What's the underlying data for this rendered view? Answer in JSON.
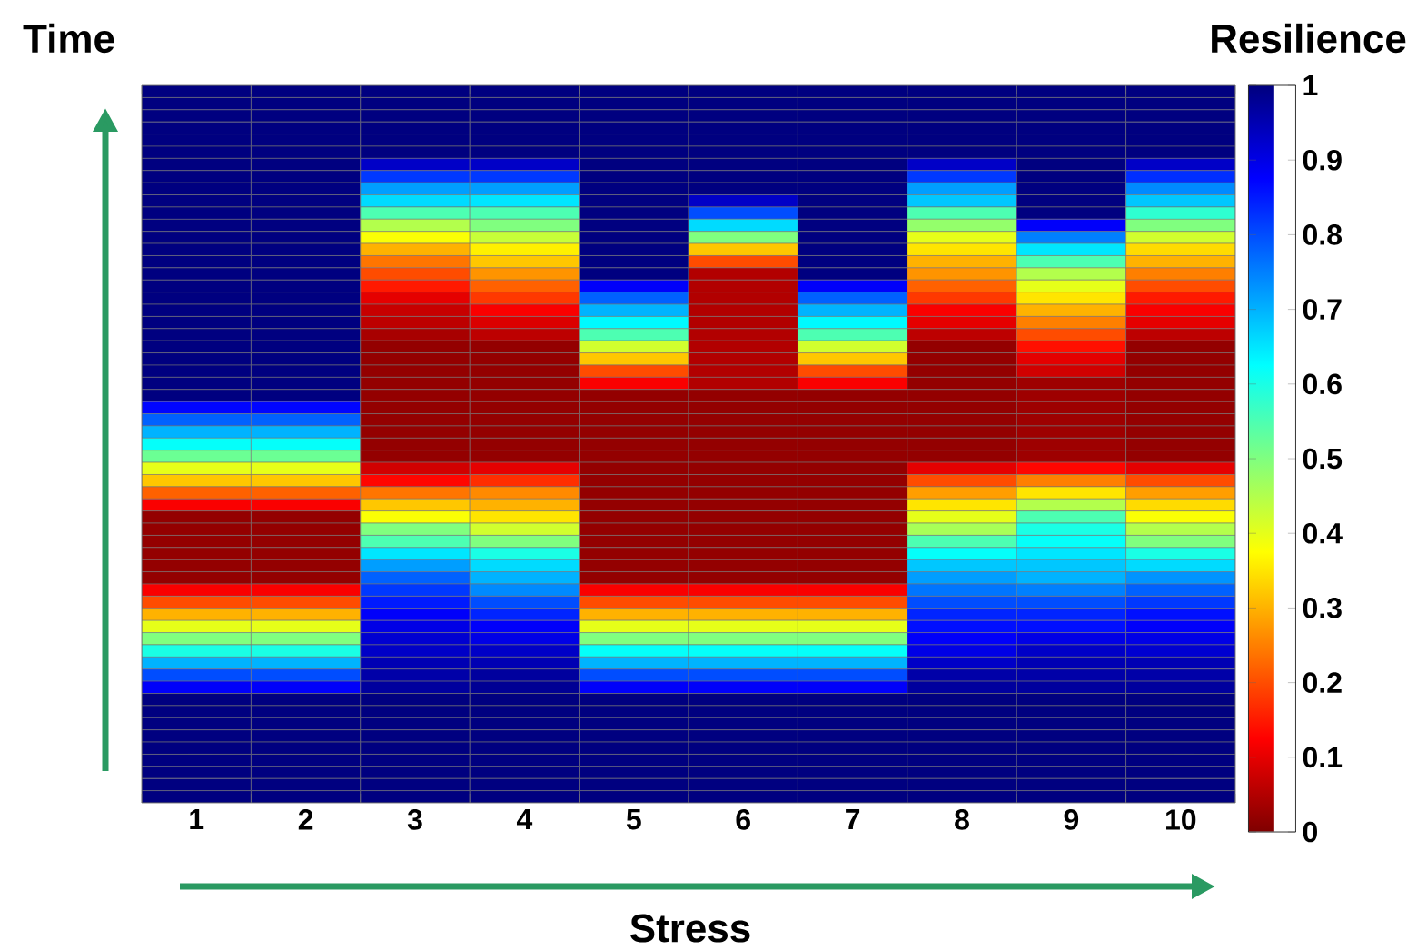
{
  "chart_data": {
    "type": "heatmap",
    "xlabel": "Stress",
    "ylabel": "Time",
    "clabel": "Resilience",
    "categories": [
      "1",
      "2",
      "3",
      "4",
      "5",
      "6",
      "7",
      "8",
      "9",
      "10"
    ],
    "y_categories": [
      null,
      null,
      null,
      null,
      null,
      null,
      null,
      null,
      null,
      null,
      null,
      null,
      null,
      null,
      null,
      null,
      null,
      null,
      null,
      null,
      null,
      null,
      null,
      null,
      null,
      null,
      null,
      null,
      null,
      null,
      null,
      null,
      null,
      null,
      null,
      null,
      null,
      null,
      null,
      null,
      null,
      null,
      null,
      null,
      null,
      null,
      null,
      null,
      null,
      null,
      null,
      null,
      null,
      null,
      null,
      null,
      null,
      null,
      null
    ],
    "clim": [
      0,
      1
    ],
    "cticks": [
      0,
      0.1,
      0.2,
      0.3,
      0.4,
      0.5,
      0.6,
      0.7,
      0.8,
      0.9,
      1
    ],
    "cells": [
      [
        1,
        1,
        1,
        1,
        1,
        1,
        1,
        1,
        1,
        1
      ],
      [
        1,
        1,
        1,
        1,
        1,
        1,
        1,
        1,
        1,
        1
      ],
      [
        1,
        1,
        1,
        1,
        1,
        1,
        1,
        1,
        1,
        1
      ],
      [
        1,
        1,
        1,
        1,
        1,
        1,
        1,
        1,
        1,
        1
      ],
      [
        1,
        1,
        1,
        1,
        1,
        1,
        1,
        1,
        1,
        1
      ],
      [
        1,
        1,
        1,
        1,
        1,
        1,
        1,
        1,
        1,
        1
      ],
      [
        1,
        1,
        0.93,
        0.93,
        1,
        1,
        1,
        0.93,
        1,
        0.93
      ],
      [
        1,
        1,
        0.82,
        0.82,
        1,
        1,
        1,
        0.82,
        1,
        0.83
      ],
      [
        1,
        1,
        0.72,
        0.72,
        1,
        1,
        1,
        0.72,
        1,
        0.74
      ],
      [
        1,
        1,
        0.66,
        0.65,
        1,
        0.93,
        1,
        0.68,
        1,
        0.68
      ],
      [
        1,
        1,
        0.55,
        0.55,
        1,
        0.8,
        1,
        0.55,
        1,
        0.58
      ],
      [
        1,
        1,
        0.45,
        0.5,
        1,
        0.66,
        1,
        0.48,
        0.88,
        0.5
      ],
      [
        1,
        1,
        0.38,
        0.43,
        1,
        0.5,
        1,
        0.4,
        0.75,
        0.42
      ],
      [
        1,
        1,
        0.3,
        0.36,
        1,
        0.32,
        1,
        0.35,
        0.65,
        0.34
      ],
      [
        1,
        1,
        0.24,
        0.32,
        1,
        0.2,
        1,
        0.3,
        0.55,
        0.3
      ],
      [
        1,
        1,
        0.2,
        0.27,
        1,
        0.05,
        1,
        0.27,
        0.45,
        0.25
      ],
      [
        1,
        1,
        0.15,
        0.22,
        0.88,
        0.05,
        0.88,
        0.22,
        0.4,
        0.2
      ],
      [
        1,
        1,
        0.1,
        0.18,
        0.78,
        0.05,
        0.78,
        0.18,
        0.35,
        0.15
      ],
      [
        1,
        1,
        0.07,
        0.12,
        0.7,
        0.05,
        0.7,
        0.12,
        0.3,
        0.12
      ],
      [
        1,
        1,
        0.06,
        0.09,
        0.63,
        0.05,
        0.63,
        0.1,
        0.25,
        0.1
      ],
      [
        1,
        1,
        0.04,
        0.06,
        0.55,
        0.05,
        0.55,
        0.06,
        0.2,
        0.06
      ],
      [
        1,
        1,
        0.02,
        0.02,
        0.42,
        0.05,
        0.42,
        0.02,
        0.14,
        0.02
      ],
      [
        1,
        1,
        0.02,
        0.02,
        0.32,
        0.05,
        0.32,
        0.02,
        0.1,
        0.02
      ],
      [
        1,
        1,
        0.02,
        0.02,
        0.2,
        0.05,
        0.2,
        0.02,
        0.08,
        0.02
      ],
      [
        1,
        1,
        0.02,
        0.02,
        0.12,
        0.05,
        0.12,
        0.02,
        0.03,
        0.02
      ],
      [
        1,
        1,
        0.02,
        0.02,
        0.02,
        0.02,
        0.02,
        0.02,
        0.03,
        0.02
      ],
      [
        0.87,
        0.87,
        0.02,
        0.02,
        0.02,
        0.02,
        0.02,
        0.02,
        0.03,
        0.02
      ],
      [
        0.78,
        0.78,
        0.02,
        0.02,
        0.02,
        0.02,
        0.02,
        0.02,
        0.03,
        0.02
      ],
      [
        0.7,
        0.7,
        0.02,
        0.02,
        0.02,
        0.02,
        0.02,
        0.02,
        0.03,
        0.02
      ],
      [
        0.62,
        0.62,
        0.02,
        0.02,
        0.02,
        0.02,
        0.02,
        0.02,
        0.03,
        0.02
      ],
      [
        0.52,
        0.52,
        0.02,
        0.02,
        0.02,
        0.02,
        0.02,
        0.02,
        0.03,
        0.02
      ],
      [
        0.4,
        0.4,
        0.08,
        0.1,
        0.02,
        0.02,
        0.02,
        0.1,
        0.13,
        0.1
      ],
      [
        0.32,
        0.32,
        0.13,
        0.17,
        0.02,
        0.02,
        0.02,
        0.2,
        0.25,
        0.2
      ],
      [
        0.22,
        0.22,
        0.24,
        0.26,
        0.02,
        0.02,
        0.02,
        0.28,
        0.35,
        0.28
      ],
      [
        0.12,
        0.12,
        0.32,
        0.3,
        0.02,
        0.02,
        0.02,
        0.35,
        0.45,
        0.34
      ],
      [
        0.02,
        0.02,
        0.38,
        0.35,
        0.02,
        0.02,
        0.02,
        0.4,
        0.55,
        0.38
      ],
      [
        0.02,
        0.02,
        0.5,
        0.42,
        0.02,
        0.02,
        0.02,
        0.46,
        0.6,
        0.45
      ],
      [
        0.02,
        0.02,
        0.55,
        0.5,
        0.02,
        0.02,
        0.02,
        0.55,
        0.62,
        0.5
      ],
      [
        0.02,
        0.02,
        0.65,
        0.6,
        0.02,
        0.02,
        0.02,
        0.62,
        0.65,
        0.6
      ],
      [
        0.02,
        0.02,
        0.72,
        0.66,
        0.02,
        0.02,
        0.02,
        0.68,
        0.68,
        0.66
      ],
      [
        0.02,
        0.02,
        0.78,
        0.7,
        0.02,
        0.02,
        0.02,
        0.72,
        0.7,
        0.73
      ],
      [
        0.12,
        0.12,
        0.82,
        0.74,
        0.12,
        0.12,
        0.12,
        0.76,
        0.75,
        0.78
      ],
      [
        0.2,
        0.2,
        0.85,
        0.8,
        0.2,
        0.2,
        0.2,
        0.8,
        0.8,
        0.82
      ],
      [
        0.3,
        0.3,
        0.88,
        0.84,
        0.3,
        0.3,
        0.3,
        0.84,
        0.84,
        0.86
      ],
      [
        0.4,
        0.4,
        0.9,
        0.88,
        0.4,
        0.4,
        0.4,
        0.86,
        0.86,
        0.88
      ],
      [
        0.5,
        0.5,
        0.92,
        0.9,
        0.5,
        0.5,
        0.5,
        0.88,
        0.9,
        0.9
      ],
      [
        0.6,
        0.6,
        0.93,
        0.93,
        0.62,
        0.62,
        0.62,
        0.9,
        0.93,
        0.92
      ],
      [
        0.7,
        0.7,
        0.95,
        0.95,
        0.7,
        0.7,
        0.7,
        0.93,
        0.95,
        0.95
      ],
      [
        0.8,
        0.8,
        0.96,
        0.97,
        0.8,
        0.8,
        0.8,
        0.96,
        0.96,
        0.96
      ],
      [
        0.88,
        0.88,
        0.97,
        0.98,
        0.88,
        0.88,
        0.88,
        0.97,
        0.97,
        0.97
      ],
      [
        1,
        1,
        1,
        1,
        1,
        1,
        1,
        1,
        1,
        1
      ],
      [
        1,
        1,
        1,
        1,
        1,
        1,
        1,
        1,
        1,
        1
      ],
      [
        1,
        1,
        1,
        1,
        1,
        1,
        1,
        1,
        1,
        1
      ],
      [
        1,
        1,
        1,
        1,
        1,
        1,
        1,
        1,
        1,
        1
      ],
      [
        1,
        1,
        1,
        1,
        1,
        1,
        1,
        1,
        1,
        1
      ],
      [
        1,
        1,
        1,
        1,
        1,
        1,
        1,
        1,
        1,
        1
      ],
      [
        1,
        1,
        1,
        1,
        1,
        1,
        1,
        1,
        1,
        1
      ],
      [
        1,
        1,
        1,
        1,
        1,
        1,
        1,
        1,
        1,
        1
      ],
      [
        1,
        1,
        1,
        1,
        1,
        1,
        1,
        1,
        1,
        1
      ]
    ]
  }
}
